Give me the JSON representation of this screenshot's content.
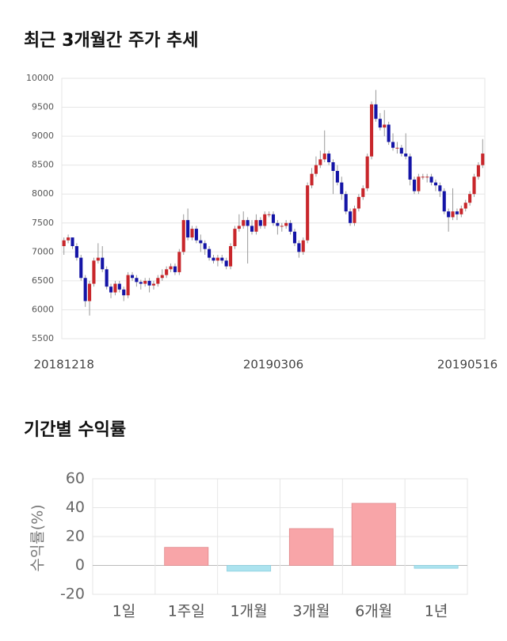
{
  "chart_data": [
    {
      "type": "candlestick",
      "title": "최근 3개월간 주가 추세",
      "categories": [
        "20181218",
        null,
        null,
        null,
        null,
        null,
        null,
        null,
        null,
        null,
        null,
        null,
        null,
        null,
        null,
        null,
        null,
        null,
        null,
        null,
        null,
        null,
        null,
        null,
        null,
        null,
        null,
        null,
        null,
        null,
        null,
        null,
        null,
        null,
        null,
        null,
        null,
        null,
        null,
        null,
        null,
        null,
        null,
        null,
        null,
        null,
        null,
        null,
        null,
        "20190306",
        null,
        null,
        null,
        null,
        null,
        null,
        null,
        null,
        null,
        null,
        null,
        null,
        null,
        null,
        null,
        null,
        null,
        null,
        null,
        null,
        null,
        null,
        null,
        null,
        null,
        null,
        null,
        null,
        null,
        null,
        null,
        null,
        null,
        null,
        null,
        null,
        null,
        null,
        null,
        null,
        null,
        null,
        null,
        null,
        null,
        null,
        null,
        null,
        "20190516"
      ],
      "ohlc": [
        [
          7100,
          7250,
          6950,
          7200
        ],
        [
          7200,
          7300,
          7150,
          7250
        ],
        [
          7250,
          7250,
          7050,
          7100
        ],
        [
          7100,
          7150,
          6850,
          6900
        ],
        [
          6900,
          6950,
          6500,
          6550
        ],
        [
          6550,
          6600,
          6050,
          6150
        ],
        [
          6150,
          6500,
          5900,
          6450
        ],
        [
          6450,
          6900,
          6400,
          6850
        ],
        [
          6850,
          7150,
          6800,
          6900
        ],
        [
          6900,
          7100,
          6650,
          6700
        ],
        [
          6700,
          6750,
          6350,
          6400
        ],
        [
          6400,
          6450,
          6200,
          6300
        ],
        [
          6300,
          6500,
          6250,
          6450
        ],
        [
          6450,
          6500,
          6300,
          6350
        ],
        [
          6350,
          6400,
          6150,
          6250
        ],
        [
          6250,
          6650,
          6200,
          6600
        ],
        [
          6600,
          6650,
          6500,
          6550
        ],
        [
          6550,
          6600,
          6400,
          6480
        ],
        [
          6480,
          6520,
          6350,
          6450
        ],
        [
          6450,
          6550,
          6400,
          6500
        ],
        [
          6500,
          6550,
          6300,
          6420
        ],
        [
          6420,
          6500,
          6350,
          6450
        ],
        [
          6450,
          6600,
          6400,
          6550
        ],
        [
          6550,
          6700,
          6500,
          6600
        ],
        [
          6600,
          6750,
          6550,
          6700
        ],
        [
          6700,
          6800,
          6650,
          6750
        ],
        [
          6750,
          6800,
          6600,
          6650
        ],
        [
          6650,
          7050,
          6600,
          7000
        ],
        [
          7000,
          7650,
          6950,
          7550
        ],
        [
          7550,
          7750,
          7200,
          7250
        ],
        [
          7250,
          7450,
          7200,
          7400
        ],
        [
          7400,
          7450,
          7150,
          7200
        ],
        [
          7200,
          7300,
          7000,
          7150
        ],
        [
          7150,
          7200,
          6950,
          7050
        ],
        [
          7050,
          7100,
          6850,
          6900
        ],
        [
          6900,
          6950,
          6800,
          6850
        ],
        [
          6850,
          6950,
          6750,
          6900
        ],
        [
          6900,
          6950,
          6800,
          6850
        ],
        [
          6850,
          6900,
          6700,
          6750
        ],
        [
          6750,
          7150,
          6700,
          7100
        ],
        [
          7100,
          7450,
          7050,
          7400
        ],
        [
          7400,
          7650,
          7350,
          7450
        ],
        [
          7450,
          7700,
          7400,
          7550
        ],
        [
          7550,
          7600,
          6800,
          7450
        ],
        [
          7450,
          7550,
          7300,
          7350
        ],
        [
          7350,
          7650,
          7300,
          7550
        ],
        [
          7550,
          7600,
          7400,
          7450
        ],
        [
          7450,
          7700,
          7400,
          7650
        ],
        [
          7650,
          7700,
          7600,
          7650
        ],
        [
          7650,
          7700,
          7450,
          7500
        ],
        [
          7500,
          7550,
          7300,
          7450
        ],
        [
          7450,
          7500,
          7350,
          7450
        ],
        [
          7450,
          7550,
          7400,
          7500
        ],
        [
          7500,
          7550,
          7300,
          7350
        ],
        [
          7350,
          7400,
          7100,
          7150
        ],
        [
          7150,
          7200,
          6900,
          7000
        ],
        [
          7000,
          7250,
          6950,
          7200
        ],
        [
          7200,
          8200,
          7150,
          8150
        ],
        [
          8150,
          8450,
          8100,
          8350
        ],
        [
          8350,
          8650,
          8300,
          8500
        ],
        [
          8500,
          8750,
          8450,
          8600
        ],
        [
          8600,
          9100,
          8550,
          8700
        ],
        [
          8700,
          8750,
          8500,
          8550
        ],
        [
          8550,
          8600,
          8000,
          8400
        ],
        [
          8400,
          8500,
          8150,
          8200
        ],
        [
          8200,
          8300,
          7900,
          8000
        ],
        [
          8000,
          8050,
          7650,
          7700
        ],
        [
          7700,
          7750,
          7450,
          7500
        ],
        [
          7500,
          7800,
          7450,
          7750
        ],
        [
          7750,
          8000,
          7700,
          7950
        ],
        [
          7950,
          8150,
          7900,
          8100
        ],
        [
          8100,
          8700,
          8050,
          8650
        ],
        [
          8650,
          9600,
          8600,
          9550
        ],
        [
          9550,
          9800,
          9250,
          9300
        ],
        [
          9300,
          9400,
          9100,
          9150
        ],
        [
          9150,
          9450,
          9000,
          9200
        ],
        [
          9200,
          9250,
          8850,
          8900
        ],
        [
          8900,
          9050,
          8750,
          8800
        ],
        [
          8800,
          8900,
          8700,
          8800
        ],
        [
          8800,
          8850,
          8650,
          8700
        ],
        [
          8700,
          9050,
          8600,
          8650
        ],
        [
          8650,
          8700,
          8150,
          8250
        ],
        [
          8250,
          8300,
          8000,
          8050
        ],
        [
          8050,
          8350,
          8000,
          8300
        ],
        [
          8300,
          8350,
          8250,
          8300
        ],
        [
          8300,
          8350,
          8200,
          8300
        ],
        [
          8300,
          8350,
          8150,
          8200
        ],
        [
          8200,
          8250,
          8050,
          8150
        ],
        [
          8150,
          8200,
          7950,
          8050
        ],
        [
          8050,
          8100,
          7650,
          7700
        ],
        [
          7700,
          7750,
          7350,
          7600
        ],
        [
          7600,
          8100,
          7550,
          7700
        ],
        [
          7700,
          7750,
          7550,
          7650
        ],
        [
          7650,
          7800,
          7600,
          7750
        ],
        [
          7750,
          7900,
          7700,
          7850
        ],
        [
          7850,
          8050,
          7800,
          8000
        ],
        [
          8000,
          8350,
          7950,
          8300
        ],
        [
          8300,
          8550,
          8250,
          8500
        ],
        [
          8500,
          8950,
          8450,
          8700
        ]
      ],
      "up_color": "#c8262b",
      "down_color": "#1414a6",
      "ylim": [
        5500,
        10000
      ],
      "yticks": [
        5500,
        6000,
        6500,
        7000,
        7500,
        8000,
        8500,
        9000,
        9500,
        10000
      ],
      "grid": true
    },
    {
      "type": "bar",
      "title": "기간별 수익률",
      "y_label": "수익률(%)",
      "categories": [
        "1일",
        "1주일",
        "1개월",
        "3개월",
        "6개월",
        "1년"
      ],
      "values": [
        0,
        12.5,
        -4,
        25.5,
        43,
        -2
      ],
      "positive_color": "#f8a5a8",
      "negative_color": "#ace3ef",
      "ylim": [
        -20,
        60
      ],
      "yticks": [
        -20,
        0,
        20,
        40,
        60
      ],
      "grid": true
    }
  ]
}
